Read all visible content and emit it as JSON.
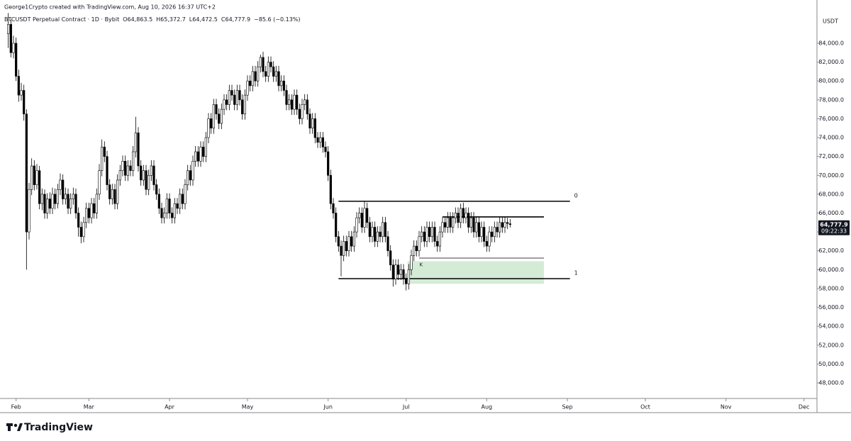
{
  "chart_data": {
    "type": "candlestick",
    "title": "George1Crypto created with TradingView.com, Aug 10, 2026 16:37 UTC+2",
    "symbol": "BTCUSDT Perpetual Contract · 1D · Bybit",
    "legend_values": [
      "O64,863.5",
      "H65,372.7",
      "L64,472.5",
      "C64,777.9",
      "−85.6 (−0.13%)"
    ],
    "y_unit": "USDT",
    "last_price_label": "64,777.9",
    "countdown": "09:22:33",
    "source": "TradingView",
    "up_color": "#ffffff",
    "down_color": "#000000",
    "border_color": "#000000",
    "xlim": [
      -1,
      311
    ],
    "xticks": [
      {
        "value": 3,
        "label": "Feb"
      },
      {
        "value": 31,
        "label": "Mar"
      },
      {
        "value": 62,
        "label": "Apr"
      },
      {
        "value": 92,
        "label": "May"
      },
      {
        "value": 123,
        "label": "Jun"
      },
      {
        "value": 153,
        "label": "Jul"
      },
      {
        "value": 184,
        "label": "Aug"
      },
      {
        "value": 215,
        "label": "Sep"
      },
      {
        "value": 245,
        "label": "Oct"
      },
      {
        "value": 276,
        "label": "Nov"
      },
      {
        "value": 306,
        "label": "Dec"
      }
    ],
    "ylim": [
      46350,
      87230
    ],
    "yticks": [
      {
        "value": 48000,
        "label": "48,000.0"
      },
      {
        "value": 50000,
        "label": "50,000.0"
      },
      {
        "value": 52000,
        "label": "52,000.0"
      },
      {
        "value": 54000,
        "label": "54,000.0"
      },
      {
        "value": 56000,
        "label": "56,000.0"
      },
      {
        "value": 58000,
        "label": "58,000.0"
      },
      {
        "value": 60000,
        "label": "60,000.0"
      },
      {
        "value": 62000,
        "label": "62,000.0"
      },
      {
        "value": 64000,
        "label": "64,000.0"
      },
      {
        "value": 66000,
        "label": "66,000.0"
      },
      {
        "value": 68000,
        "label": "68,000.0"
      },
      {
        "value": 70000,
        "label": "70,000.0"
      },
      {
        "value": 72000,
        "label": "72,000.0"
      },
      {
        "value": 74000,
        "label": "74,000.0"
      },
      {
        "value": 76000,
        "label": "76,000.0"
      },
      {
        "value": 78000,
        "label": "78,000.0"
      },
      {
        "value": 80000,
        "label": "80,000.0"
      },
      {
        "value": 82000,
        "label": "82,000.0"
      },
      {
        "value": 84000,
        "label": "84,000.0"
      }
    ],
    "levels": [
      {
        "label": "0",
        "price": 67250,
        "start": 127,
        "end": 216,
        "width": 1.6
      },
      {
        "label": "1",
        "price": 59050,
        "start": 127,
        "end": 216,
        "width": 1.6
      },
      {
        "price": 65590,
        "start": 167,
        "end": 206,
        "width": 1.6
      },
      {
        "price": 61230,
        "start": 158,
        "end": 206,
        "width": 0.8
      }
    ],
    "zone": {
      "top": 60900,
      "bottom": 58500,
      "start": 153.5,
      "end": 206,
      "color": "#d4ecd6",
      "label": "K"
    },
    "ohlc": [
      [
        85000,
        87200,
        83500,
        86000
      ],
      [
        86000,
        86500,
        82500,
        83000
      ],
      [
        83000,
        84800,
        82400,
        84000
      ],
      [
        84000,
        84600,
        80000,
        80500
      ],
      [
        80500,
        81200,
        77800,
        78500
      ],
      [
        78500,
        79800,
        77900,
        79000
      ],
      [
        79000,
        79600,
        75800,
        76500
      ],
      [
        76500,
        77000,
        60000,
        64000
      ],
      [
        64000,
        69200,
        63200,
        68500
      ],
      [
        68500,
        71800,
        67900,
        71000
      ],
      [
        71000,
        71600,
        68400,
        69000
      ],
      [
        69000,
        71200,
        68500,
        70500
      ],
      [
        70500,
        71000,
        66400,
        67000
      ],
      [
        67000,
        68600,
        66300,
        68000
      ],
      [
        68000,
        68500,
        65400,
        66000
      ],
      [
        66000,
        68100,
        65400,
        67500
      ],
      [
        67500,
        68200,
        65900,
        66500
      ],
      [
        66500,
        68700,
        65900,
        68000
      ],
      [
        68000,
        68600,
        66400,
        67000
      ],
      [
        67000,
        69100,
        66500,
        68500
      ],
      [
        68500,
        70200,
        67900,
        69500
      ],
      [
        69500,
        70100,
        66900,
        67500
      ],
      [
        67500,
        68700,
        66900,
        68000
      ],
      [
        68000,
        68600,
        65900,
        66500
      ],
      [
        66500,
        68100,
        65900,
        67500
      ],
      [
        67500,
        68700,
        66900,
        68000
      ],
      [
        68000,
        68600,
        65400,
        66000
      ],
      [
        66000,
        66600,
        63500,
        64500
      ],
      [
        64500,
        65100,
        62800,
        63500
      ],
      [
        63500,
        65600,
        62900,
        65000
      ],
      [
        65000,
        67100,
        64400,
        66500
      ],
      [
        66500,
        67100,
        64900,
        65500
      ],
      [
        65500,
        67600,
        64900,
        67000
      ],
      [
        67000,
        67600,
        65400,
        66000
      ],
      [
        66000,
        68600,
        65400,
        68000
      ],
      [
        68000,
        71200,
        67400,
        70500
      ],
      [
        70500,
        73800,
        69900,
        73000
      ],
      [
        73000,
        73600,
        71400,
        72000
      ],
      [
        72000,
        72600,
        68400,
        69000
      ],
      [
        69000,
        69600,
        66900,
        67500
      ],
      [
        67500,
        69100,
        66900,
        68500
      ],
      [
        68500,
        69100,
        66400,
        67000
      ],
      [
        67000,
        70100,
        66400,
        69500
      ],
      [
        69500,
        71100,
        68900,
        70500
      ],
      [
        70500,
        72100,
        69900,
        71500
      ],
      [
        71500,
        72100,
        69400,
        70000
      ],
      [
        70000,
        71600,
        69400,
        71000
      ],
      [
        71000,
        71600,
        69900,
        70500
      ],
      [
        70500,
        73100,
        69900,
        72500
      ],
      [
        72500,
        76200,
        71900,
        74500
      ],
      [
        74500,
        75100,
        70400,
        71000
      ],
      [
        71000,
        71600,
        68900,
        69500
      ],
      [
        69500,
        71100,
        68900,
        70500
      ],
      [
        70500,
        71100,
        67900,
        68500
      ],
      [
        68500,
        70600,
        67900,
        70000
      ],
      [
        70000,
        71600,
        69400,
        71000
      ],
      [
        71000,
        71600,
        68400,
        69000
      ],
      [
        69000,
        69600,
        67400,
        68000
      ],
      [
        68000,
        68600,
        65900,
        66500
      ],
      [
        66500,
        67100,
        64900,
        65500
      ],
      [
        65500,
        66600,
        64900,
        66000
      ],
      [
        66000,
        68100,
        65400,
        67500
      ],
      [
        67500,
        68100,
        65400,
        66000
      ],
      [
        66000,
        66600,
        64900,
        65500
      ],
      [
        65500,
        67600,
        64900,
        67000
      ],
      [
        67000,
        67600,
        65900,
        66500
      ],
      [
        66500,
        68600,
        65900,
        68000
      ],
      [
        68000,
        68600,
        66400,
        67000
      ],
      [
        67000,
        69600,
        66400,
        69000
      ],
      [
        69000,
        71100,
        68400,
        70500
      ],
      [
        70500,
        71100,
        68900,
        69500
      ],
      [
        69500,
        72100,
        68900,
        71500
      ],
      [
        71500,
        73100,
        70900,
        72500
      ],
      [
        72500,
        73100,
        70900,
        71500
      ],
      [
        71500,
        73600,
        70900,
        73000
      ],
      [
        73000,
        73600,
        71400,
        72000
      ],
      [
        72000,
        74600,
        71400,
        74000
      ],
      [
        74000,
        76600,
        73400,
        76000
      ],
      [
        76000,
        76600,
        74400,
        75000
      ],
      [
        75000,
        78100,
        74400,
        77500
      ],
      [
        77500,
        78100,
        75900,
        76500
      ],
      [
        76500,
        77100,
        74900,
        75500
      ],
      [
        75500,
        77600,
        74900,
        77000
      ],
      [
        77000,
        78600,
        76400,
        78000
      ],
      [
        78000,
        78600,
        76900,
        77500
      ],
      [
        77500,
        79600,
        76900,
        79000
      ],
      [
        79000,
        79600,
        77900,
        78500
      ],
      [
        78500,
        79100,
        76900,
        77500
      ],
      [
        77500,
        79600,
        76900,
        79000
      ],
      [
        79000,
        79600,
        77400,
        78000
      ],
      [
        78000,
        78600,
        75900,
        76500
      ],
      [
        76500,
        79100,
        75900,
        78500
      ],
      [
        78500,
        80600,
        77900,
        80000
      ],
      [
        80000,
        80600,
        78900,
        79500
      ],
      [
        79500,
        81600,
        78900,
        81000
      ],
      [
        81000,
        81600,
        79400,
        80000
      ],
      [
        80000,
        82100,
        79400,
        81500
      ],
      [
        81500,
        82800,
        80900,
        82500
      ],
      [
        82500,
        83100,
        80400,
        81000
      ],
      [
        81000,
        81600,
        79900,
        80500
      ],
      [
        80500,
        82600,
        79900,
        82000
      ],
      [
        82000,
        82600,
        80900,
        81500
      ],
      [
        81500,
        82100,
        79900,
        80500
      ],
      [
        80500,
        81600,
        79900,
        81000
      ],
      [
        81000,
        81600,
        78900,
        79500
      ],
      [
        79500,
        80600,
        78900,
        80000
      ],
      [
        80000,
        80600,
        78400,
        79000
      ],
      [
        79000,
        79600,
        76900,
        77500
      ],
      [
        77500,
        78600,
        76900,
        78000
      ],
      [
        78000,
        78600,
        76400,
        77000
      ],
      [
        77000,
        79100,
        76400,
        78500
      ],
      [
        78500,
        79100,
        76400,
        77000
      ],
      [
        77000,
        77600,
        75400,
        76000
      ],
      [
        76000,
        78100,
        75400,
        77500
      ],
      [
        77500,
        78600,
        76900,
        78000
      ],
      [
        78000,
        78600,
        75900,
        76500
      ],
      [
        76500,
        77100,
        74400,
        75000
      ],
      [
        75000,
        76600,
        74400,
        76000
      ],
      [
        76000,
        76600,
        73400,
        74000
      ],
      [
        74000,
        74600,
        72900,
        73500
      ],
      [
        73500,
        74600,
        72900,
        74000
      ],
      [
        74000,
        74600,
        72400,
        73000
      ],
      [
        73000,
        73600,
        71900,
        72500
      ],
      [
        72500,
        73100,
        69400,
        70000
      ],
      [
        70000,
        70600,
        66400,
        67000
      ],
      [
        67000,
        67600,
        65400,
        66000
      ],
      [
        66000,
        66600,
        62900,
        63500
      ],
      [
        63500,
        64100,
        61900,
        62500
      ],
      [
        62500,
        63100,
        59300,
        61500
      ],
      [
        61500,
        63600,
        60900,
        63000
      ],
      [
        63000,
        63600,
        61400,
        62000
      ],
      [
        62000,
        64100,
        61400,
        63500
      ],
      [
        63500,
        64100,
        61900,
        62500
      ],
      [
        62500,
        64600,
        61900,
        64000
      ],
      [
        64000,
        66100,
        63400,
        65500
      ],
      [
        65500,
        66600,
        64900,
        66000
      ],
      [
        66000,
        66600,
        63900,
        64500
      ],
      [
        64500,
        67300,
        63900,
        66500
      ],
      [
        66500,
        67100,
        64400,
        65000
      ],
      [
        65000,
        65600,
        62900,
        63500
      ],
      [
        63500,
        65100,
        62900,
        64500
      ],
      [
        64500,
        65100,
        62400,
        63000
      ],
      [
        63000,
        64600,
        62400,
        64000
      ],
      [
        64000,
        64600,
        62900,
        63500
      ],
      [
        63500,
        65600,
        62900,
        65000
      ],
      [
        65000,
        65600,
        62900,
        63500
      ],
      [
        63500,
        64100,
        61400,
        62000
      ],
      [
        62000,
        62600,
        59900,
        60500
      ],
      [
        60500,
        61100,
        58200,
        59000
      ],
      [
        59000,
        61100,
        58400,
        60500
      ],
      [
        60500,
        61100,
        58900,
        59500
      ],
      [
        59500,
        60600,
        58900,
        60000
      ],
      [
        60000,
        60600,
        58400,
        59000
      ],
      [
        59000,
        59600,
        57800,
        58500
      ],
      [
        58500,
        60600,
        57900,
        60000
      ],
      [
        60000,
        62100,
        59400,
        61500
      ],
      [
        61500,
        63100,
        60900,
        62500
      ],
      [
        62500,
        63100,
        61400,
        62000
      ],
      [
        62000,
        64100,
        61400,
        63500
      ],
      [
        63500,
        64600,
        62900,
        64000
      ],
      [
        64000,
        64600,
        62400,
        63000
      ],
      [
        63000,
        65100,
        62400,
        64500
      ],
      [
        64500,
        65100,
        62900,
        63500
      ],
      [
        63500,
        65100,
        62900,
        64500
      ],
      [
        64500,
        65100,
        62400,
        63000
      ],
      [
        63000,
        63600,
        61900,
        62500
      ],
      [
        62500,
        64600,
        61900,
        64000
      ],
      [
        64000,
        65600,
        63400,
        65000
      ],
      [
        65000,
        65600,
        63900,
        64500
      ],
      [
        64500,
        66100,
        63900,
        65500
      ],
      [
        65500,
        66100,
        63900,
        64500
      ],
      [
        64500,
        66100,
        63900,
        65500
      ],
      [
        65500,
        66600,
        64900,
        66000
      ],
      [
        66000,
        66600,
        64400,
        65000
      ],
      [
        65000,
        67000,
        64400,
        66500
      ],
      [
        66500,
        67100,
        64900,
        65500
      ],
      [
        65500,
        66600,
        64900,
        66000
      ],
      [
        66000,
        66600,
        63900,
        64500
      ],
      [
        64500,
        66100,
        63900,
        65500
      ],
      [
        65500,
        66100,
        63400,
        64000
      ],
      [
        64000,
        65600,
        63400,
        65000
      ],
      [
        65000,
        65600,
        62900,
        63500
      ],
      [
        63500,
        65100,
        62900,
        64500
      ],
      [
        64500,
        65100,
        62400,
        63000
      ],
      [
        63000,
        63600,
        61900,
        62500
      ],
      [
        62500,
        64600,
        61900,
        64000
      ],
      [
        64000,
        64600,
        62900,
        63500
      ],
      [
        63500,
        65100,
        62900,
        64500
      ],
      [
        64500,
        65100,
        63400,
        64000
      ],
      [
        64000,
        65600,
        63400,
        65000
      ],
      [
        65000,
        65600,
        63900,
        64500
      ],
      [
        64500,
        65600,
        63900,
        65000
      ],
      [
        65000,
        65500,
        64300,
        64900
      ],
      [
        64863.5,
        65372.7,
        64472.5,
        64777.9
      ]
    ]
  }
}
